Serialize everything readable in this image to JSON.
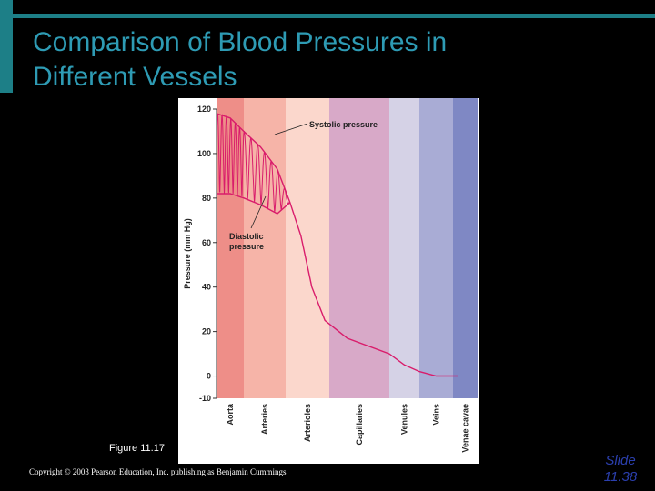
{
  "slide": {
    "title_line1": "Comparison of Blood Pressures in",
    "title_line2": "Different Vessels",
    "figure_caption": "Figure 11.17",
    "copyright": "Copyright © 2003 Pearson Education, Inc. publishing as Benjamin Cummings",
    "slide_label": "Slide",
    "slide_number": "11.38",
    "colors": {
      "background": "#000000",
      "accent_teal": "#1d7f87",
      "title": "#2e9bb4",
      "slide_number": "#2b3fae",
      "curve": "#d91c6b"
    }
  },
  "chart_data": {
    "type": "line",
    "title": "",
    "xlabel": "",
    "ylabel": "Pressure (mm Hg)",
    "ylim": [
      -10,
      120
    ],
    "yticks": [
      -10,
      0,
      20,
      40,
      60,
      80,
      100,
      120
    ],
    "categories": [
      "Aorta",
      "Arteries",
      "Arterioles",
      "Capillaries",
      "Venules",
      "Veins",
      "Venae cavae"
    ],
    "category_colors": [
      "#ee8e88",
      "#f6b4a8",
      "#fbd7cc",
      "#d8a9c8",
      "#d5d2e6",
      "#a9acd5",
      "#7f88c4"
    ],
    "annotations": [
      "Systolic pressure",
      "Diastolic pressure"
    ],
    "series": [
      {
        "x": [
          0,
          0.5,
          1.0,
          1.4,
          1.8,
          2.1,
          2.35,
          2.6,
          2.9,
          3.3,
          4.0,
          4.5,
          5.0,
          5.5,
          6.2
        ],
        "values": [
          118,
          116,
          110,
          103,
          93,
          78,
          63,
          40,
          25,
          17,
          10,
          5,
          2,
          0,
          0
        ]
      },
      {
        "x": [
          0,
          0.5,
          1.0,
          1.4,
          1.8,
          2.1
        ],
        "values": [
          82,
          82,
          80,
          77,
          73,
          78
        ]
      }
    ]
  }
}
